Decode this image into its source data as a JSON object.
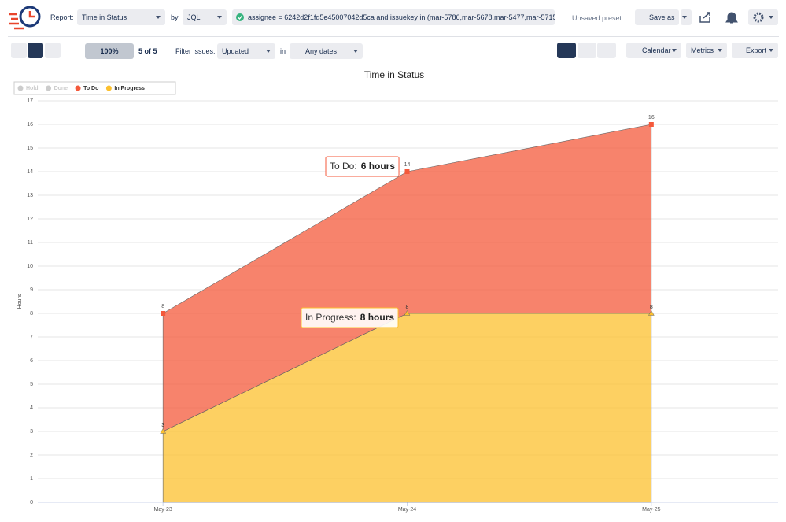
{
  "toolbar": {
    "report_label": "Report:",
    "report": "Time in Status",
    "by_label": "by",
    "by": "JQL",
    "query": "assignee = 6242d2f1fd5e45007042d5ca and issuekey in (mar-5786,mar-5678,mar-5477,mar-5715...",
    "preset": "Unsaved preset",
    "save_as": "Save as",
    "progress": "100%",
    "count": "5 of 5",
    "filter_label": "Filter issues:",
    "filter": "Updated",
    "in_label": "in",
    "dates": "Any dates",
    "calendar": "Calendar",
    "metrics": "Metrics",
    "export": "Export"
  },
  "chart_data": {
    "type": "stacked-area",
    "title": "Time in Status",
    "y_label": "Hours",
    "categories": [
      "May-23",
      "May-24",
      "May-25"
    ],
    "series": [
      {
        "name": "Hold",
        "color": "#c1c7d0",
        "hidden": true,
        "values": [
          null,
          null,
          null
        ]
      },
      {
        "name": "Done",
        "color": "#c1c7d0",
        "hidden": true,
        "values": [
          null,
          null,
          null
        ]
      },
      {
        "name": "To Do",
        "color": "#f4593b",
        "values": [
          5,
          6,
          8
        ]
      },
      {
        "name": "In Progress",
        "color": "#fcc02e",
        "values": [
          3,
          8,
          8
        ]
      }
    ],
    "total_labels": [
      "8",
      "14",
      "16"
    ],
    "ylim": [
      0,
      17
    ],
    "yticks": [
      0,
      1,
      2,
      3,
      4,
      5,
      6,
      7,
      8,
      9,
      10,
      11,
      12,
      13,
      14,
      15,
      16,
      17
    ],
    "grid": true,
    "legend": "top-left",
    "tooltips": [
      {
        "series": "To Do:",
        "text": "6 hours"
      },
      {
        "series": "In Progress:",
        "text": "8 hours"
      }
    ]
  }
}
